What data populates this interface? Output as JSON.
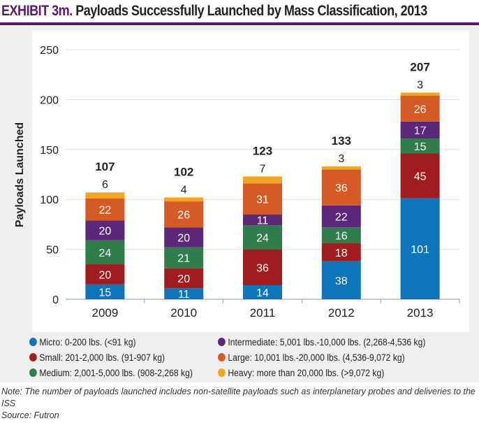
{
  "title_prefix": "EXHIBIT 3m.",
  "title": "Payloads Successfully Launched by Mass Classification, 2013",
  "note": "Note: The number of payloads launched includes non-satellite payloads such as interplanetary probes and deliveries to the ISS",
  "source": "Source: Futron",
  "chart_data": {
    "type": "bar",
    "stacked": true,
    "ylabel": "Payloads Launched",
    "xlabel": "",
    "ylim": [
      0,
      250
    ],
    "yticks": [
      0,
      50,
      100,
      150,
      200,
      250
    ],
    "grid": true,
    "legend_placement": "bottom",
    "categories": [
      "2009",
      "2010",
      "2011",
      "2012",
      "2013"
    ],
    "totals": [
      107,
      102,
      123,
      133,
      207
    ],
    "series": [
      {
        "name": "Micro: 0-200 lbs. (<91 kg)",
        "color": "#0f75bb",
        "values": [
          15,
          11,
          14,
          38,
          101
        ]
      },
      {
        "name": "Small: 201-2,000 lbs. (91-907 kg)",
        "color": "#a11c1f",
        "values": [
          20,
          20,
          36,
          18,
          45
        ]
      },
      {
        "name": "Medium: 2,001-5,000 lbs. (908-2,268 kg)",
        "color": "#2e7d4a",
        "values": [
          24,
          21,
          24,
          16,
          15
        ]
      },
      {
        "name": "Intermediate: 5,001 lbs.-10,000 lbs. (2,268-4,536 kg)",
        "color": "#5a2779",
        "values": [
          20,
          20,
          11,
          22,
          17
        ]
      },
      {
        "name": "Large: 10,001 lbs.-20,000 lbs. (4,536-9,072 kg)",
        "color": "#d65a26",
        "values": [
          22,
          26,
          31,
          36,
          26
        ]
      },
      {
        "name": "Heavy: more than 20,000 lbs. (>9,072 kg)",
        "color": "#f2a51e",
        "values": [
          6,
          4,
          7,
          3,
          3
        ]
      }
    ]
  }
}
